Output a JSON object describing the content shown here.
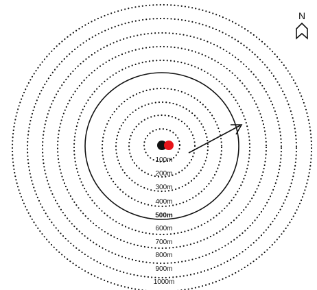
{
  "north": {
    "label": "N",
    "icon": "north-arrow-icon"
  },
  "rings": [
    {
      "label": "100m",
      "highlighted": false
    },
    {
      "label": "200m",
      "highlighted": false
    },
    {
      "label": "300m",
      "highlighted": false
    },
    {
      "label": "400m",
      "highlighted": false
    },
    {
      "label": "500m",
      "highlighted": true
    },
    {
      "label": "600m",
      "highlighted": false
    },
    {
      "label": "700m",
      "highlighted": false
    },
    {
      "label": "800m",
      "highlighted": false
    },
    {
      "label": "900m",
      "highlighted": false
    },
    {
      "label": "1000m",
      "highlighted": false
    }
  ],
  "markers": [
    {
      "name": "black-point-marker",
      "color": "#111111"
    },
    {
      "name": "red-point-marker",
      "color": "#e8141a"
    }
  ],
  "colors": {
    "ring": "#111111",
    "arrow": "#111111"
  }
}
